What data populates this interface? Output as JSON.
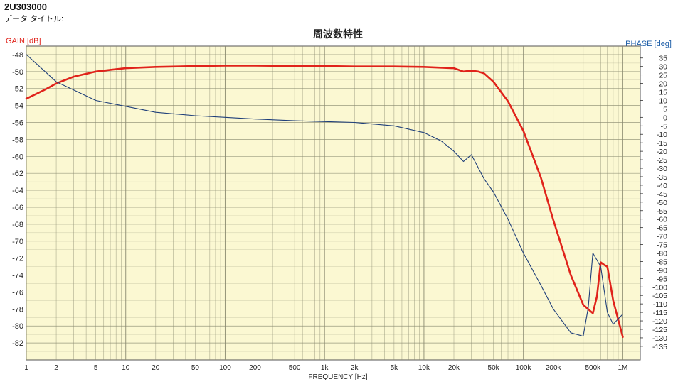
{
  "document": {
    "id": "2U303000",
    "data_title_label": "データ タイトル:"
  },
  "colors": {
    "plot_background": "#fbf8d2",
    "grid": "#8a8a70",
    "gain_line": "#e0231b",
    "phase_line": "#1f3f7a",
    "gain_axis_label": "#e0231b",
    "phase_axis_label": "#1f5fa8"
  },
  "chart_data": {
    "type": "line",
    "title": "周波数特性",
    "xlabel": "FREQUENCY [Hz]",
    "xscale": "log",
    "xlim": [
      1,
      1500000
    ],
    "x_tick_labels": [
      {
        "value": 1,
        "label": "1"
      },
      {
        "value": 2,
        "label": "2"
      },
      {
        "value": 5,
        "label": "5"
      },
      {
        "value": 10,
        "label": "10"
      },
      {
        "value": 20,
        "label": "20"
      },
      {
        "value": 50,
        "label": "50"
      },
      {
        "value": 100,
        "label": "100"
      },
      {
        "value": 200,
        "label": "200"
      },
      {
        "value": 500,
        "label": "500"
      },
      {
        "value": 1000,
        "label": "1k"
      },
      {
        "value": 2000,
        "label": "2k"
      },
      {
        "value": 5000,
        "label": "5k"
      },
      {
        "value": 10000,
        "label": "10k"
      },
      {
        "value": 20000,
        "label": "20k"
      },
      {
        "value": 50000,
        "label": "50k"
      },
      {
        "value": 100000,
        "label": "100k"
      },
      {
        "value": 200000,
        "label": "200k"
      },
      {
        "value": 500000,
        "label": "500k"
      },
      {
        "value": 1000000,
        "label": "1M"
      }
    ],
    "y_left": {
      "label": "GAIN [dB]",
      "ylim": [
        -84,
        -47
      ],
      "ticks": [
        -48,
        -50,
        -52,
        -54,
        -56,
        -58,
        -60,
        -62,
        -64,
        -66,
        -68,
        -70,
        -72,
        -74,
        -76,
        -78,
        -80,
        -82
      ]
    },
    "y_right": {
      "label": "PHASE [deg]",
      "ylim": [
        -143,
        42
      ],
      "ticks": [
        35,
        30,
        25,
        20,
        15,
        10,
        5,
        0,
        -5,
        -10,
        -15,
        -20,
        -25,
        -30,
        -35,
        -40,
        -45,
        -50,
        -55,
        -60,
        -65,
        -70,
        -75,
        -80,
        -85,
        -90,
        -95,
        -100,
        -105,
        -110,
        -115,
        -120,
        -125,
        -130,
        -135
      ]
    },
    "grid": true,
    "series": [
      {
        "axis": "left",
        "x": [
          1,
          1.5,
          2,
          3,
          5,
          7,
          10,
          20,
          50,
          100,
          200,
          500,
          1000,
          2000,
          5000,
          10000,
          20000,
          25000,
          30000,
          35000,
          40000,
          50000,
          70000,
          100000,
          150000,
          200000,
          300000,
          400000,
          500000,
          550000,
          600000,
          650000,
          700000,
          800000,
          1000000
        ],
        "y": [
          -53.2,
          -52.2,
          -51.4,
          -50.6,
          -50.0,
          -49.8,
          -49.6,
          -49.45,
          -49.35,
          -49.3,
          -49.3,
          -49.35,
          -49.35,
          -49.4,
          -49.4,
          -49.45,
          -49.6,
          -50.0,
          -49.9,
          -50.0,
          -50.2,
          -51.2,
          -53.5,
          -57.0,
          -62.5,
          -67.5,
          -74.0,
          -77.5,
          -78.5,
          -76.5,
          -72.5,
          -72.8,
          -73.0,
          -77.0,
          -81.3
        ]
      },
      {
        "axis": "right",
        "x": [
          1,
          2,
          5,
          10,
          20,
          50,
          100,
          200,
          500,
          1000,
          2000,
          5000,
          10000,
          15000,
          20000,
          25000,
          30000,
          40000,
          50000,
          70000,
          100000,
          150000,
          200000,
          300000,
          400000,
          450000,
          500000,
          600000,
          700000,
          800000,
          1000000
        ],
        "y": [
          37,
          21,
          10,
          6.5,
          3,
          1,
          0,
          -1,
          -2,
          -2.5,
          -3,
          -5,
          -9,
          -14,
          -20,
          -26,
          -22,
          -36,
          -44,
          -60,
          -80,
          -99,
          -113,
          -127,
          -129,
          -112,
          -80,
          -88,
          -115,
          -122,
          -116
        ]
      }
    ]
  }
}
